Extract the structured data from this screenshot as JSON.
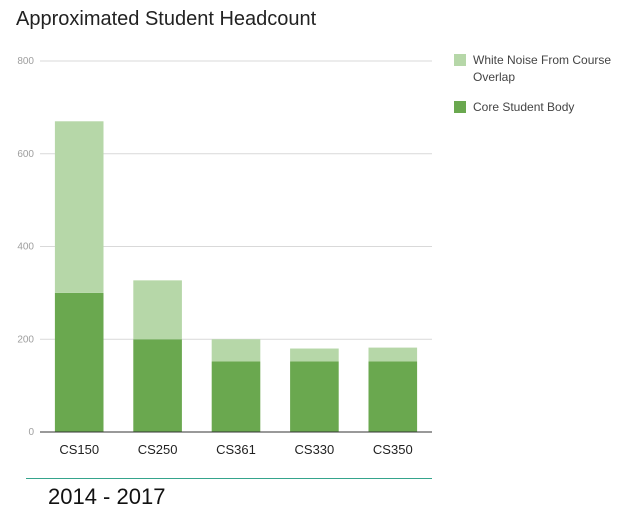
{
  "chart_data": {
    "type": "bar",
    "stacked": true,
    "title": "Approximated Student Headcount",
    "xlabel": "",
    "ylabel": "",
    "categories": [
      "CS150",
      "CS250",
      "CS361",
      "CS330",
      "CS350"
    ],
    "series": [
      {
        "name": "Core Student Body",
        "color": "#6aa84f",
        "values": [
          300,
          200,
          152,
          152,
          152
        ]
      },
      {
        "name": "White Noise From Course Overlap",
        "color": "#b6d7a8",
        "values": [
          370,
          127,
          48,
          28,
          30
        ]
      }
    ],
    "ylim": [
      0,
      800
    ],
    "yticks": [
      0,
      200,
      400,
      600,
      800
    ],
    "ytick_labels": [
      "0",
      "200",
      "400",
      "600",
      "800"
    ],
    "grid": true,
    "legend_position": "right"
  },
  "legend": [
    {
      "label": "White Noise From Course Overlap",
      "color": "#b6d7a8"
    },
    {
      "label": "Core Student Body",
      "color": "#6aa84f"
    }
  ],
  "footer": {
    "text": "2014 - 2017"
  }
}
